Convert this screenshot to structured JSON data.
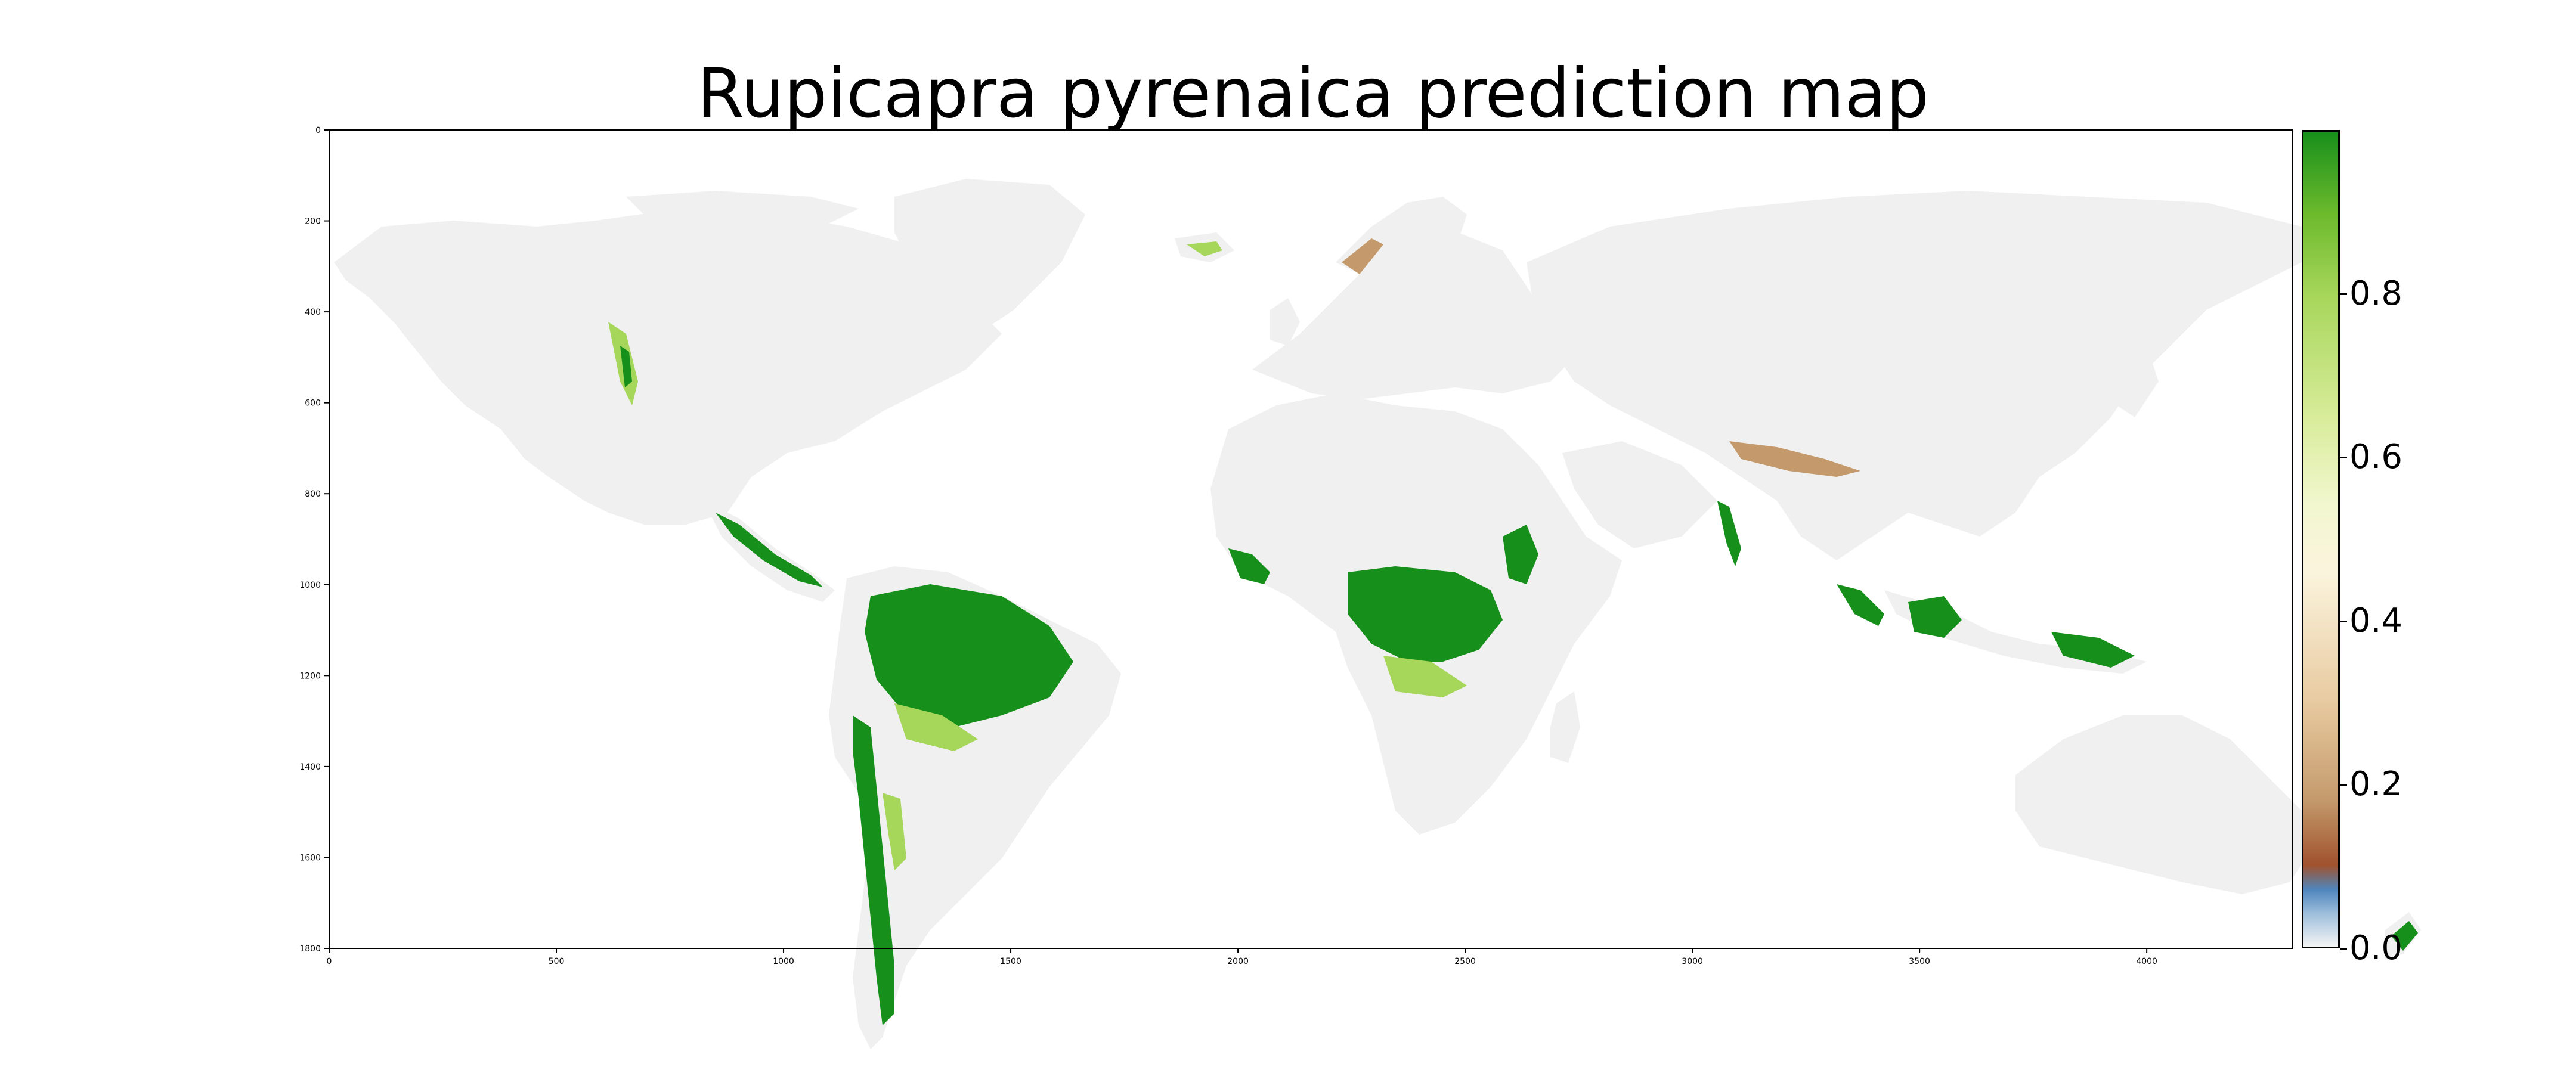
{
  "title": "Rupicapra pyrenaica prediction map",
  "map": {
    "x_axis": {
      "ticks": [
        0,
        500,
        1000,
        1500,
        2000,
        2500,
        3000,
        3500,
        4000
      ],
      "range": [
        0,
        4320
      ]
    },
    "y_axis": {
      "ticks": [
        0,
        200,
        400,
        600,
        800,
        1000,
        1200,
        1400,
        1600,
        1800
      ],
      "range": [
        0,
        1800
      ],
      "inverted": true
    },
    "land_color": "#f0f0f0",
    "high_color": "#178f1b",
    "mid_color": "#a6d65a",
    "low_color": "#a0522d",
    "zero_color": "#4f86bd"
  },
  "colorbar": {
    "ticks": [
      "0.0",
      "0.2",
      "0.4",
      "0.6",
      "0.8"
    ],
    "tick_values": [
      0.0,
      0.2,
      0.4,
      0.6,
      0.8
    ],
    "range": [
      0.0,
      1.0
    ]
  }
}
